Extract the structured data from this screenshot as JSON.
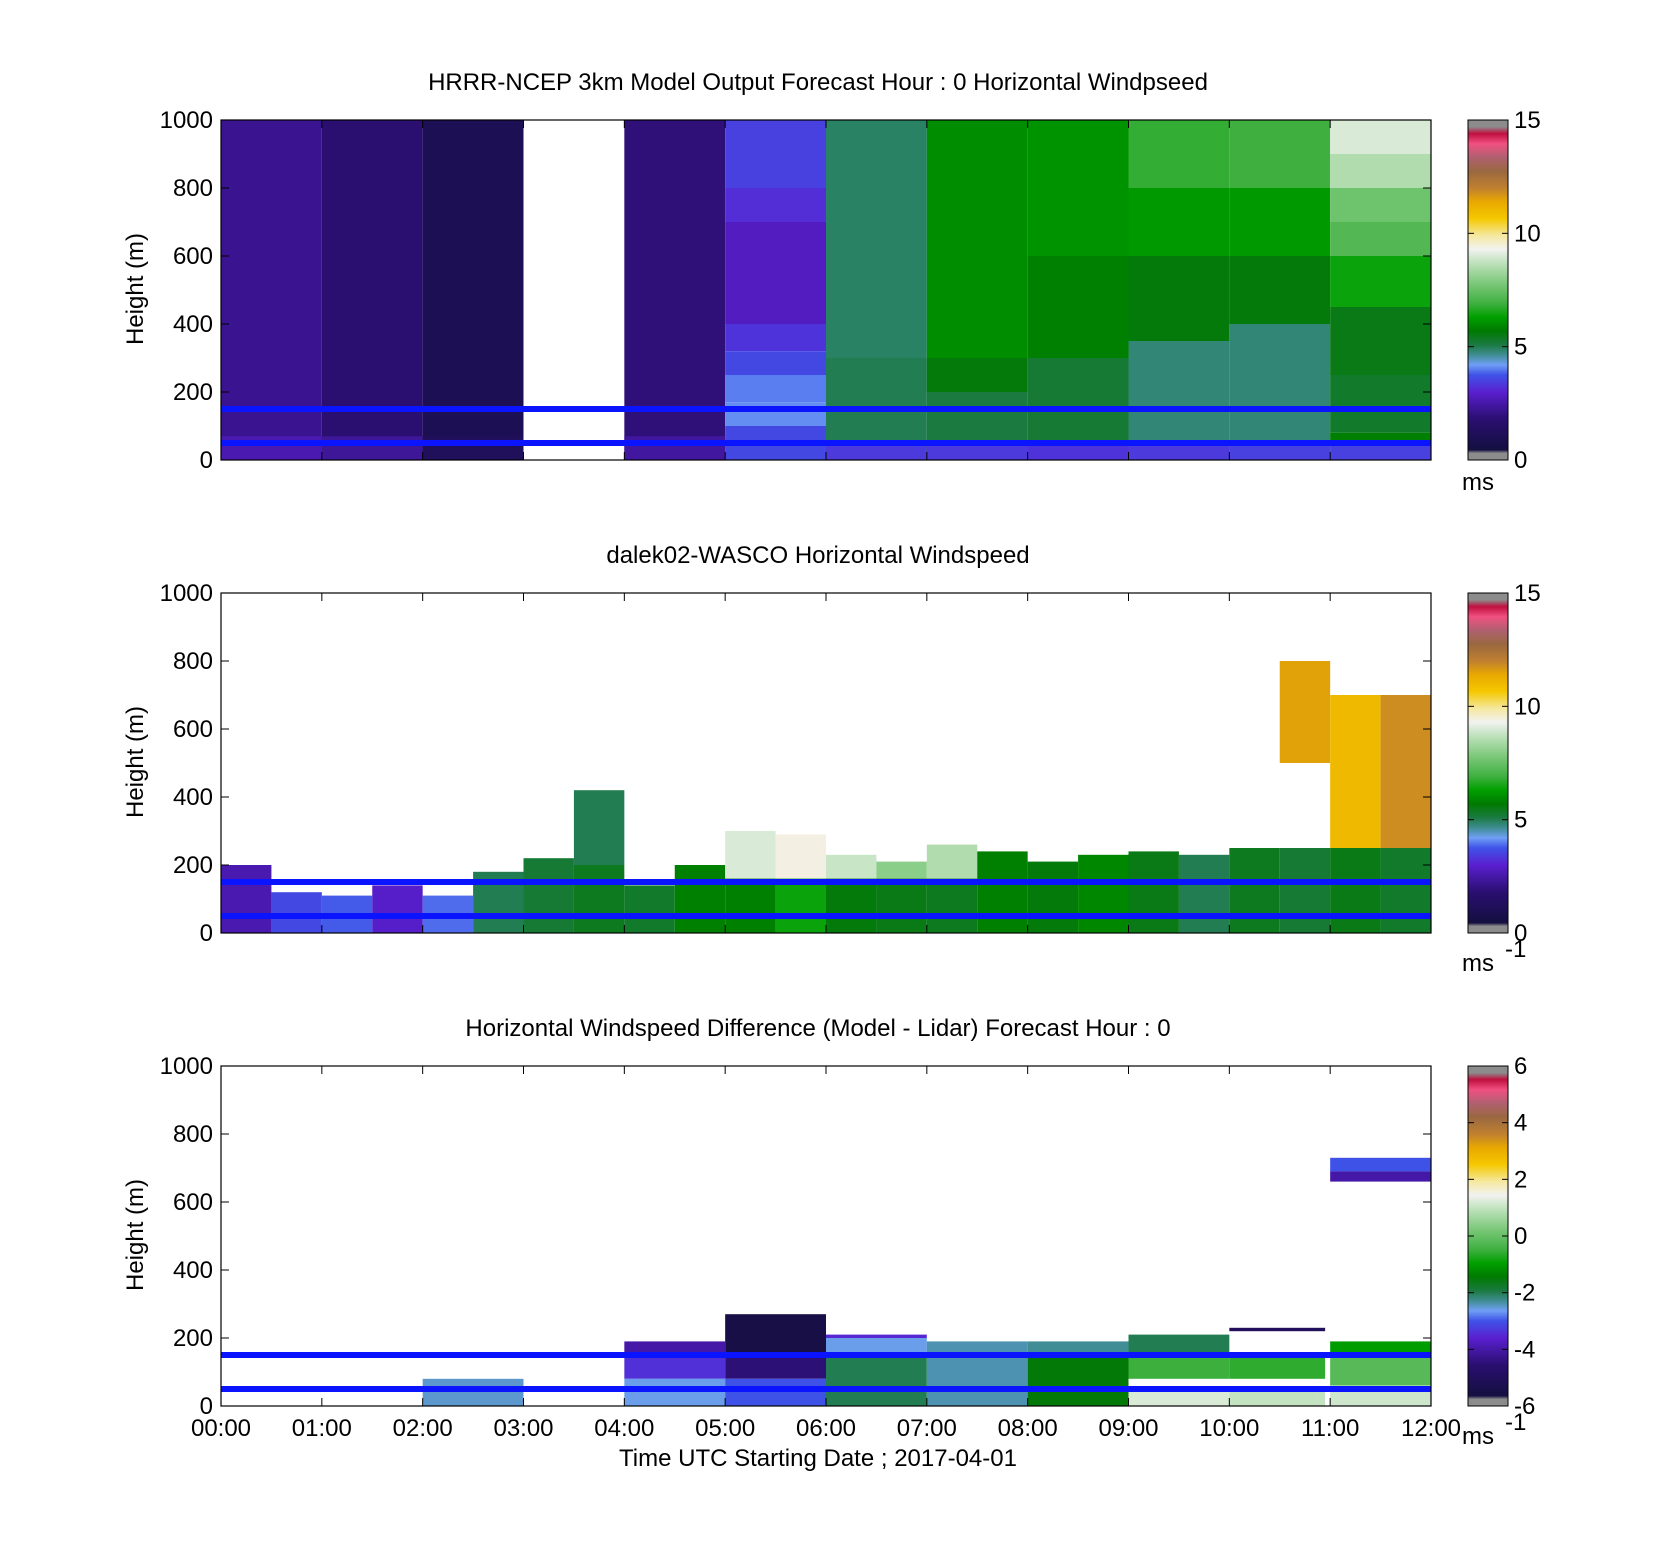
{
  "chart_data": [
    {
      "type": "heatmap",
      "title": "HRRR-NCEP 3km Model Output   Forecast Hour : 0 Horizontal Windpseed",
      "ylabel": "Height (m)",
      "xlim": [
        0,
        12
      ],
      "ylim": [
        0,
        1000
      ],
      "yticks": [
        "0",
        "200",
        "400",
        "600",
        "800",
        "1000"
      ],
      "colorbar": {
        "ticks": [
          "0",
          "5",
          "10",
          "15"
        ],
        "label": "ms",
        "sup": "",
        "range": [
          0,
          15
        ]
      },
      "reference_lines_m": [
        50,
        150
      ],
      "columns": [
        {
          "x0": 0,
          "x1": 1,
          "seg": [
            [
              0,
              1000,
              2.2
            ]
          ],
          "low": [
            0,
            70,
            2.6
          ]
        },
        {
          "x0": 1,
          "x1": 2,
          "seg": [
            [
              0,
              1000,
              1.8
            ]
          ],
          "low": [
            0,
            70,
            2.3
          ]
        },
        {
          "x0": 2,
          "x1": 3,
          "seg": [
            [
              0,
              1000,
              1.0
            ]
          ],
          "low": [
            0,
            70,
            1.2
          ]
        },
        {
          "x0": 4,
          "x1": 5,
          "seg": [
            [
              0,
              1000,
              1.9
            ]
          ],
          "low": [
            0,
            70,
            2.4
          ]
        },
        {
          "x0": 5,
          "x1": 6,
          "seg": [
            [
              800,
              1000,
              3.5
            ],
            [
              700,
              800,
              3.2
            ],
            [
              400,
              700,
              2.8
            ],
            [
              320,
              400,
              3.3
            ],
            [
              250,
              320,
              3.6
            ],
            [
              170,
              250,
              4.0
            ],
            [
              100,
              170,
              4.1
            ],
            [
              0,
              100,
              3.6
            ]
          ]
        },
        {
          "x0": 6,
          "x1": 7,
          "seg": [
            [
              300,
              1000,
              4.9
            ],
            [
              0,
              300,
              5.0
            ]
          ],
          "low": [
            0,
            50,
            3.4
          ]
        },
        {
          "x0": 7,
          "x1": 8,
          "seg": [
            [
              300,
              1000,
              6.0
            ],
            [
              200,
              300,
              5.6
            ],
            [
              0,
              200,
              5.1
            ]
          ],
          "low": [
            0,
            50,
            3.4
          ]
        },
        {
          "x0": 8,
          "x1": 9,
          "seg": [
            [
              600,
              1000,
              6.1
            ],
            [
              300,
              600,
              5.8
            ],
            [
              0,
              300,
              5.2
            ]
          ],
          "low": [
            0,
            50,
            3.3
          ]
        },
        {
          "x0": 9,
          "x1": 10,
          "seg": [
            [
              800,
              1000,
              6.8
            ],
            [
              600,
              800,
              6.2
            ],
            [
              350,
              600,
              5.6
            ],
            [
              0,
              350,
              4.8
            ]
          ],
          "low": [
            0,
            50,
            3.4
          ]
        },
        {
          "x0": 10,
          "x1": 11,
          "seg": [
            [
              800,
              1000,
              6.9
            ],
            [
              600,
              800,
              6.2
            ],
            [
              400,
              600,
              5.6
            ],
            [
              0,
              400,
              4.8
            ]
          ],
          "low": [
            0,
            50,
            3.5
          ]
        },
        {
          "x0": 11,
          "x1": 12,
          "seg": [
            [
              900,
              1000,
              9.0
            ],
            [
              800,
              900,
              8.5
            ],
            [
              700,
              800,
              7.6
            ],
            [
              600,
              700,
              7.2
            ],
            [
              450,
              600,
              6.4
            ],
            [
              250,
              450,
              5.5
            ],
            [
              80,
              250,
              5.3
            ],
            [
              50,
              80,
              5.8
            ]
          ],
          "low": [
            0,
            50,
            3.5
          ]
        }
      ]
    },
    {
      "type": "heatmap",
      "title": "dalek02-WASCO  Horizontal Windspeed",
      "ylabel": "Height (m)",
      "xlim": [
        0,
        12
      ],
      "ylim": [
        0,
        1000
      ],
      "yticks": [
        "0",
        "200",
        "400",
        "600",
        "800",
        "1000"
      ],
      "colorbar": {
        "ticks": [
          "0",
          "5",
          "10",
          "15"
        ],
        "label": "ms",
        "sup": "-1",
        "range": [
          0,
          15
        ]
      },
      "reference_lines_m": [
        50,
        150
      ],
      "columns": [
        {
          "x0": 0,
          "x1": 0.5,
          "seg": [
            [
              0,
              200,
              2.6
            ]
          ]
        },
        {
          "x0": 0.5,
          "x1": 1,
          "seg": [
            [
              0,
              120,
              3.6
            ]
          ]
        },
        {
          "x0": 1,
          "x1": 1.5,
          "seg": [
            [
              0,
              110,
              3.8
            ]
          ]
        },
        {
          "x0": 1.5,
          "x1": 2,
          "seg": [
            [
              0,
              140,
              2.9
            ]
          ]
        },
        {
          "x0": 2,
          "x1": 2.5,
          "seg": [
            [
              0,
              110,
              3.9
            ]
          ]
        },
        {
          "x0": 2.5,
          "x1": 3,
          "seg": [
            [
              0,
              180,
              5.0
            ]
          ]
        },
        {
          "x0": 3,
          "x1": 3.5,
          "seg": [
            [
              0,
              220,
              5.2
            ]
          ]
        },
        {
          "x0": 3.5,
          "x1": 4,
          "seg": [
            [
              200,
              420,
              5.0
            ],
            [
              0,
              200,
              5.4
            ]
          ]
        },
        {
          "x0": 4,
          "x1": 4.5,
          "seg": [
            [
              0,
              140,
              5.3
            ]
          ]
        },
        {
          "x0": 4.5,
          "x1": 5,
          "seg": [
            [
              0,
              200,
              5.8
            ]
          ]
        },
        {
          "x0": 5,
          "x1": 5.5,
          "seg": [
            [
              160,
              300,
              9.0
            ],
            [
              0,
              160,
              5.8
            ]
          ]
        },
        {
          "x0": 5.5,
          "x1": 6,
          "seg": [
            [
              160,
              290,
              9.4
            ],
            [
              0,
              160,
              6.4
            ]
          ]
        },
        {
          "x0": 6,
          "x1": 6.5,
          "seg": [
            [
              160,
              230,
              8.8
            ],
            [
              0,
              160,
              5.6
            ]
          ]
        },
        {
          "x0": 6.5,
          "x1": 7,
          "seg": [
            [
              160,
              210,
              8.0
            ],
            [
              0,
              160,
              5.5
            ]
          ]
        },
        {
          "x0": 7,
          "x1": 7.5,
          "seg": [
            [
              160,
              260,
              8.5
            ],
            [
              0,
              160,
              5.4
            ]
          ]
        },
        {
          "x0": 7.5,
          "x1": 8,
          "seg": [
            [
              0,
              240,
              5.8
            ]
          ]
        },
        {
          "x0": 8,
          "x1": 8.5,
          "seg": [
            [
              0,
              210,
              5.6
            ]
          ]
        },
        {
          "x0": 8.5,
          "x1": 9,
          "seg": [
            [
              0,
              230,
              5.9
            ]
          ]
        },
        {
          "x0": 9,
          "x1": 9.5,
          "seg": [
            [
              0,
              240,
              5.5
            ]
          ]
        },
        {
          "x0": 9.5,
          "x1": 10,
          "seg": [
            [
              0,
              230,
              5.0
            ]
          ]
        },
        {
          "x0": 10,
          "x1": 10.5,
          "seg": [
            [
              0,
              250,
              5.4
            ]
          ]
        },
        {
          "x0": 10.5,
          "x1": 11,
          "seg": [
            [
              500,
              800,
              11.5
            ],
            [
              0,
              250,
              5.2
            ]
          ]
        },
        {
          "x0": 11,
          "x1": 11.5,
          "seg": [
            [
              250,
              700,
              11.0
            ],
            [
              0,
              250,
              5.5
            ]
          ]
        },
        {
          "x0": 11.5,
          "x1": 12,
          "seg": [
            [
              250,
              700,
              11.8
            ],
            [
              0,
              250,
              5.3
            ]
          ]
        }
      ]
    },
    {
      "type": "heatmap",
      "title": "Horizontal Windspeed Difference (Model - Lidar) Forecast Hour : 0",
      "ylabel": "Height (m)",
      "xlabel": "Time UTC  Starting Date ; 2017-04-01",
      "xlim": [
        0,
        12
      ],
      "ylim": [
        0,
        1000
      ],
      "yticks": [
        "0",
        "200",
        "400",
        "600",
        "800",
        "1000"
      ],
      "xticks": [
        "00:00",
        "01:00",
        "02:00",
        "03:00",
        "04:00",
        "05:00",
        "06:00",
        "07:00",
        "08:00",
        "09:00",
        "10:00",
        "11:00",
        "12:00"
      ],
      "colorbar": {
        "ticks": [
          "-6",
          "-4",
          "-2",
          "0",
          "2",
          "4",
          "6"
        ],
        "label": "ms",
        "sup": "-1",
        "range": [
          -6,
          6
        ]
      },
      "reference_lines_m": [
        50,
        150
      ],
      "columns": [
        {
          "x0": 2,
          "x1": 3,
          "seg": [
            [
              0,
              80,
              -2.5
            ]
          ]
        },
        {
          "x0": 4,
          "x1": 5,
          "seg": [
            [
              150,
              190,
              -4.0
            ],
            [
              80,
              150,
              -3.4
            ],
            [
              0,
              80,
              -2.6
            ]
          ]
        },
        {
          "x0": 5,
          "x1": 6,
          "seg": [
            [
              150,
              270,
              -5.5
            ],
            [
              80,
              150,
              -4.5
            ],
            [
              0,
              80,
              -3.0
            ]
          ]
        },
        {
          "x0": 6,
          "x1": 7,
          "seg": [
            [
              200,
              210,
              -3.5
            ],
            [
              150,
              200,
              -2.6
            ],
            [
              0,
              150,
              -2.0
            ]
          ]
        },
        {
          "x0": 7,
          "x1": 8,
          "seg": [
            [
              0,
              190,
              -2.4
            ]
          ]
        },
        {
          "x0": 8,
          "x1": 9,
          "seg": [
            [
              150,
              190,
              -2.3
            ],
            [
              0,
              150,
              -1.5
            ]
          ]
        },
        {
          "x0": 9,
          "x1": 10,
          "seg": [
            [
              150,
              210,
              -2.0
            ],
            [
              80,
              150,
              -0.5
            ],
            [
              0,
              50,
              1.2
            ]
          ]
        },
        {
          "x0": 10,
          "x1": 10.95,
          "seg": [
            [
              220,
              230,
              -5.0
            ],
            [
              80,
              150,
              -0.6
            ],
            [
              0,
              50,
              1.0
            ]
          ]
        },
        {
          "x0": 11,
          "x1": 12,
          "seg": [
            [
              690,
              730,
              -3.0
            ],
            [
              660,
              690,
              -4.0
            ],
            [
              150,
              190,
              -1.0
            ],
            [
              60,
              150,
              -0.2
            ],
            [
              0,
              50,
              1.1
            ]
          ]
        }
      ]
    }
  ]
}
